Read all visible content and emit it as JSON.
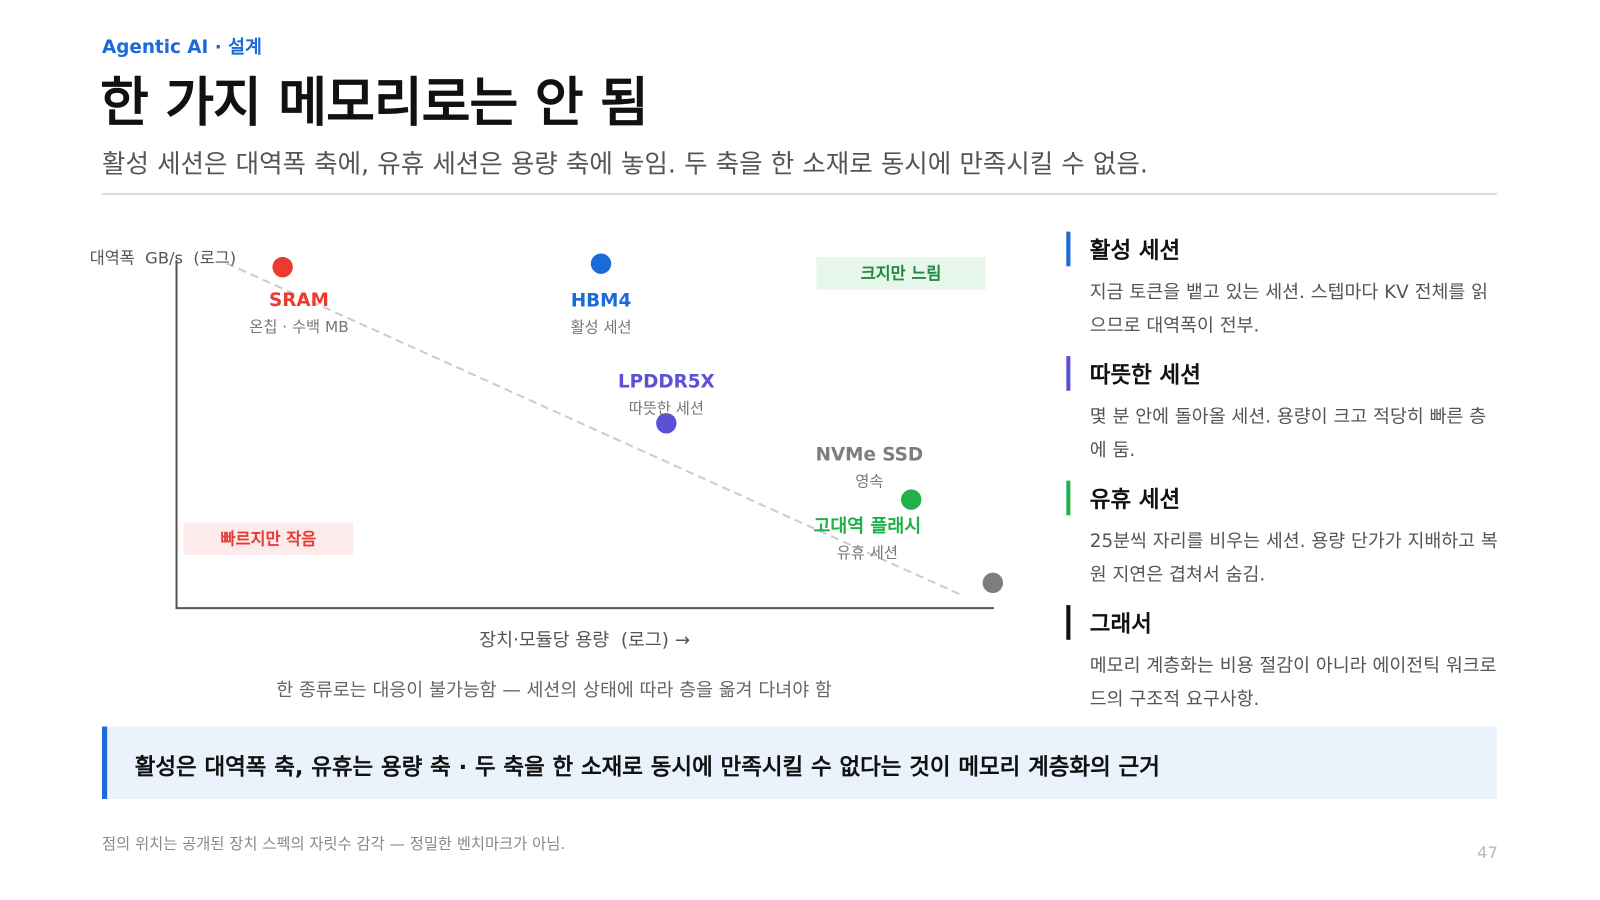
{
  "header": {
    "kicker": "Agentic AI · 설계",
    "title": "한 가지 메모리로는 안 됨",
    "subtitle": "활성 세션은 대역폭 축에, 유휴 세션은 용량 축에 놓임. 두 축을 한 소재로 동시에 만족시킬 수 없음."
  },
  "chart_data": {
    "type": "scatter",
    "y_label": "대역폭  GB/s  (로그)",
    "x_label": "장치·모듈당 용량  (로그) →",
    "caption": "한 종류로는 대응이 불가능함 — 세션의 상태에 따라 층을 옮겨 다녀야 함",
    "annotations": [
      "크지만 느림",
      "빠르지만 작음"
    ],
    "xlim": [
      0,
      100
    ],
    "ylim": [
      0,
      100
    ],
    "series": [
      {
        "name": "SRAM",
        "sublabel": "온칩 · 수백 MB",
        "color": "#ec3a30",
        "x": [
          13
        ],
        "values": [
          98
        ]
      },
      {
        "name": "HBM4",
        "sublabel": "활성 세션",
        "color": "#1a6ad8",
        "x": [
          52
        ],
        "values": [
          99
        ]
      },
      {
        "name": "LPDDR5X",
        "sublabel": "따뜻한 세션",
        "color": "#5b50d6",
        "x": [
          60
        ],
        "values": [
          53
        ]
      },
      {
        "name": "NVMe SSD",
        "sublabel": "영속",
        "color": "#7d7d7d",
        "x": [
          100
        ],
        "values": [
          7
        ]
      },
      {
        "name": "고대역 플래시",
        "sublabel": "유휴 세션",
        "color": "#22b04b",
        "x": [
          90
        ],
        "values": [
          31
        ]
      }
    ]
  },
  "sidebar": [
    {
      "title": "활성 세션",
      "body": "지금 토큰을 뱉고 있는 세션. 스텝마다 KV 전체를 읽으므로 대역폭이 전부.",
      "color": "#1a6ad8"
    },
    {
      "title": "따뜻한 세션",
      "body": "몇 분 안에 돌아올 세션. 용량이 크고 적당히 빠른 층에 둠.",
      "color": "#5b50d6"
    },
    {
      "title": "유휴 세션",
      "body": "25분씩 자리를 비우는 세션. 용량 단가가 지배하고 복원 지연은 겹쳐서 숨김.",
      "color": "#22b04b"
    },
    {
      "title": "그래서",
      "body": "메모리 계층화는 비용 절감이 아니라 에이전틱 워크로드의 구조적 요구사항.",
      "color": "#111111"
    }
  ],
  "callout": "활성은 대역폭 축, 유휴는 용량 축 · 두 축을 한 소재로 동시에 만족시킬 수 없다는 것이 메모리 계층화의 근거",
  "footnote": "점의 위치는 공개된 장치 스펙의 자릿수 감각 — 정밀한 벤치마크가 아님.",
  "page_number": 47
}
